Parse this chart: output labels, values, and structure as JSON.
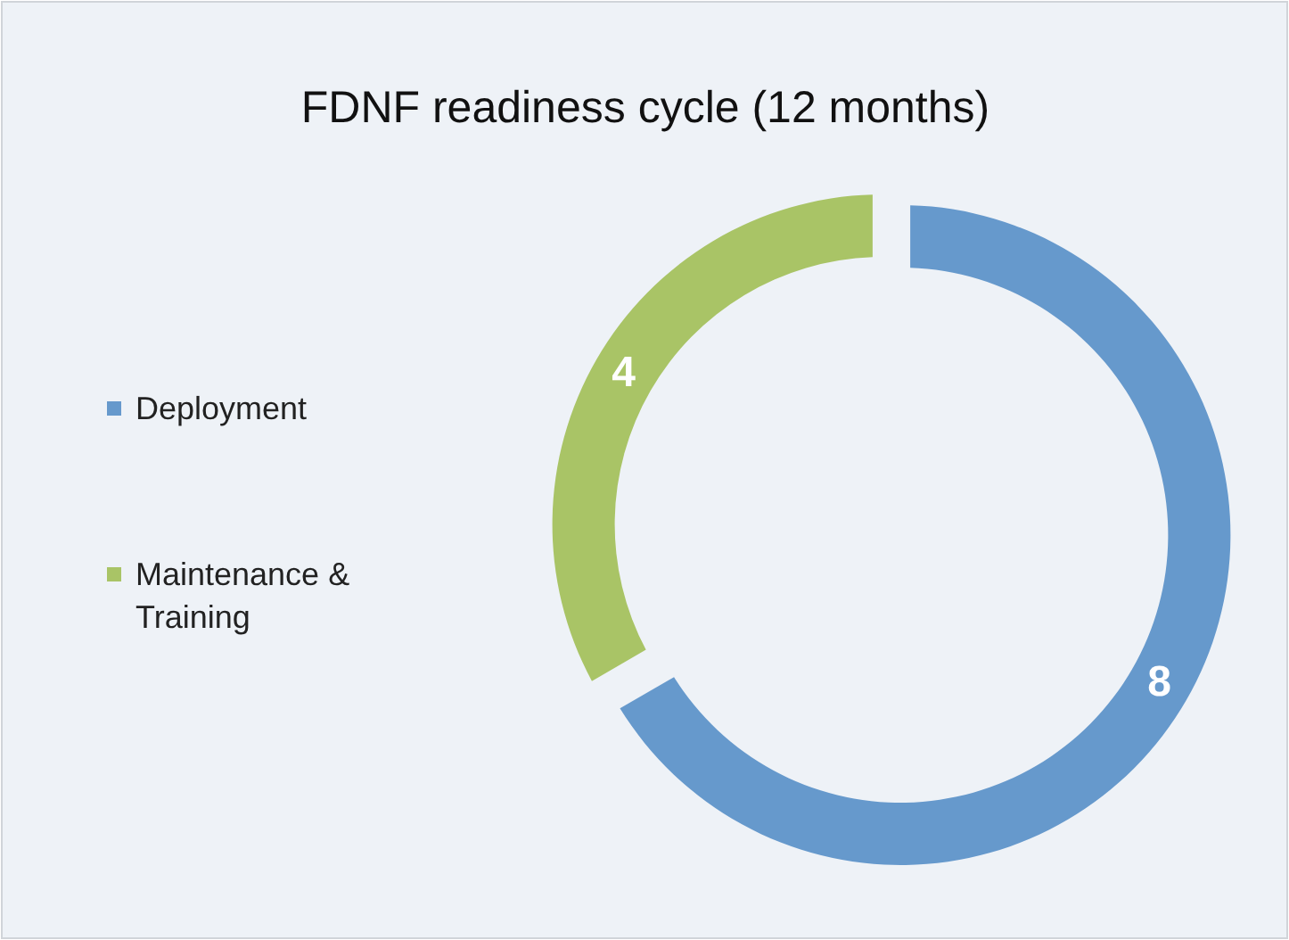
{
  "chart_data": {
    "type": "donut",
    "title": "FDNF readiness cycle (12 months)",
    "categories": [
      "Deployment",
      "Maintenance & Training"
    ],
    "values": [
      8,
      4
    ],
    "colors": [
      "#6699cc",
      "#a9c466"
    ],
    "data_labels": true,
    "legend": "left"
  }
}
